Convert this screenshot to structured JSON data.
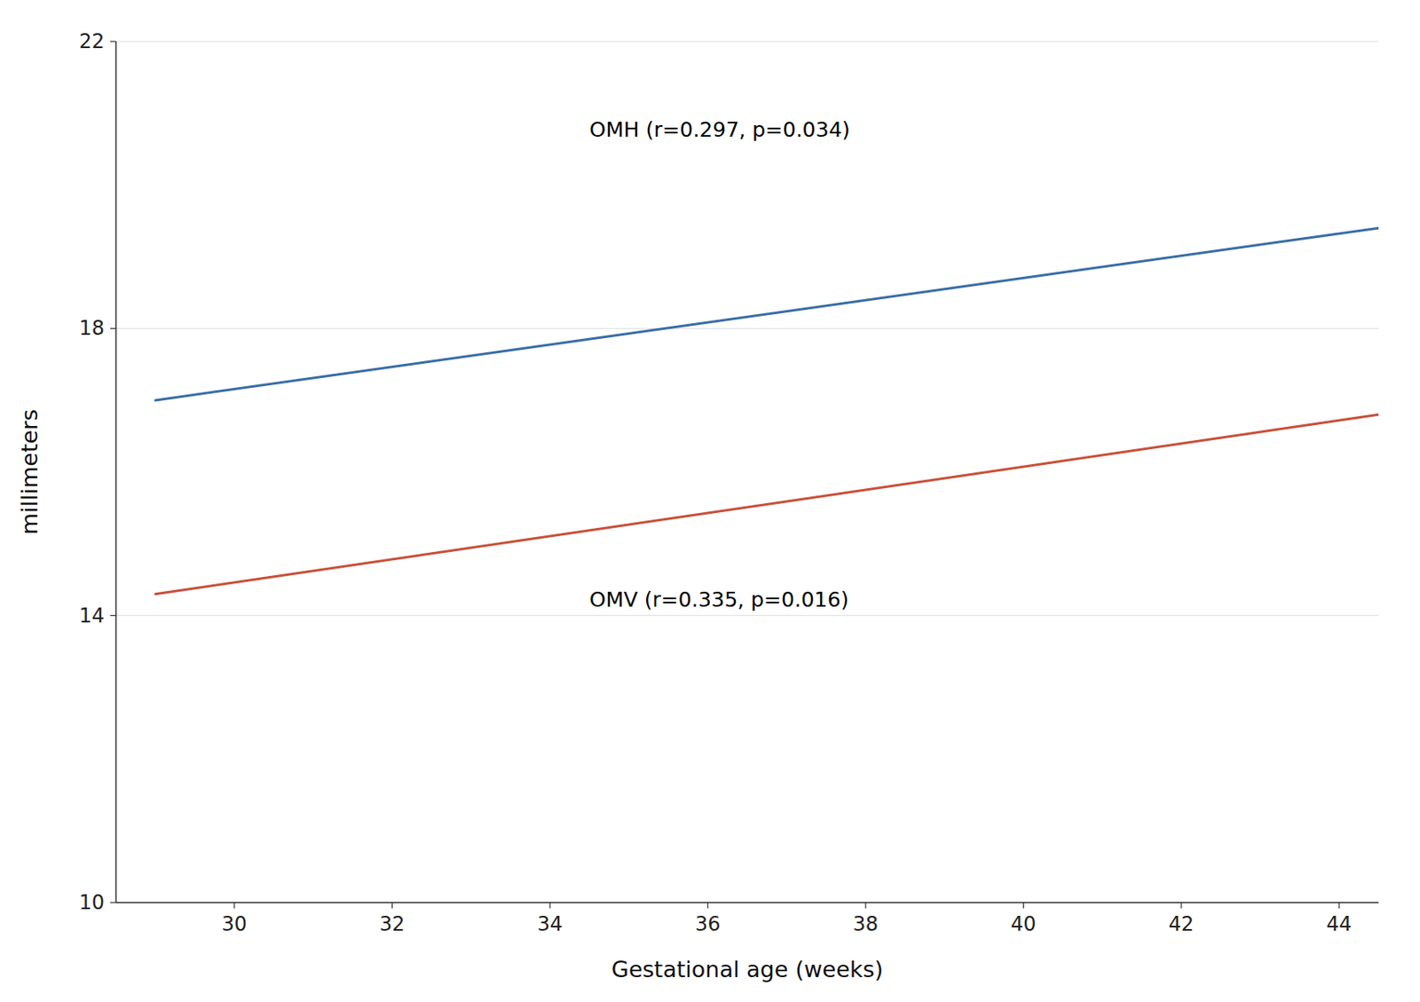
{
  "chart_data": {
    "type": "line",
    "xlabel": "Gestational age (weeks)",
    "ylabel": "millimeters",
    "x": [
      29.0,
      44.5
    ],
    "series": [
      {
        "color": "#3a6ea5",
        "values": [
          17.0,
          19.4
        ]
      },
      {
        "color": "#c9503a",
        "values": [
          14.3,
          16.8
        ]
      }
    ],
    "annotations": [
      {
        "text": "OMH (r=0.297, p=0.034)",
        "x": 34.5,
        "y": 20.6
      },
      {
        "text": "OMV (r=0.335, p=0.016)",
        "x": 34.5,
        "y": 14.05
      }
    ],
    "xlim": [
      28.5,
      44.5
    ],
    "ylim": [
      10,
      22
    ],
    "xticks": [
      30,
      32,
      34,
      36,
      38,
      40,
      42,
      44
    ],
    "yticks": [
      10,
      14,
      18,
      22
    ],
    "grid": "y"
  }
}
